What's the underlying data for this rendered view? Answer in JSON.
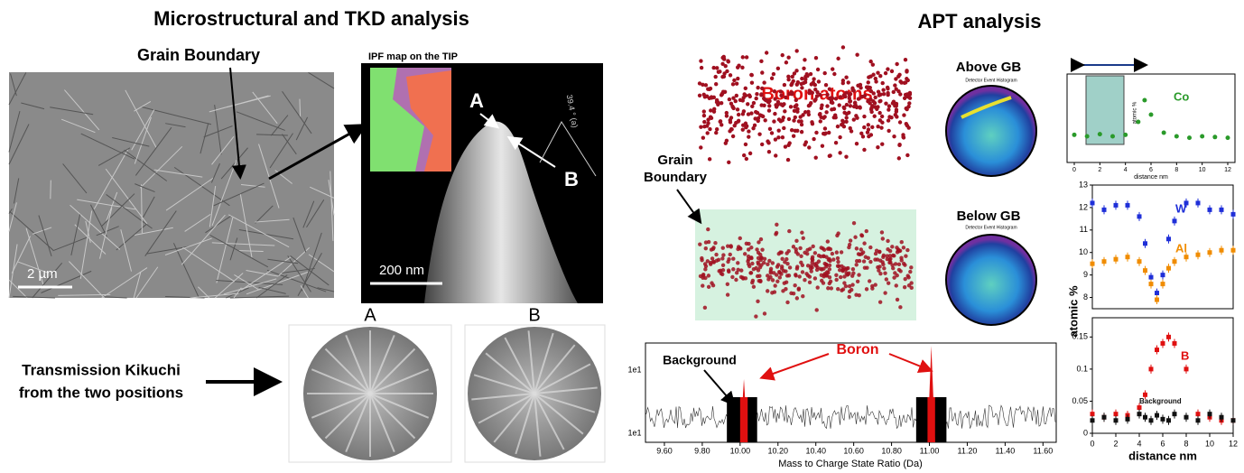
{
  "left": {
    "title": "Microstructural and TKD analysis",
    "grain_boundary_label": "Grain Boundary",
    "sem_scale": "2 µm",
    "ipf_label": "IPF map on the TIP",
    "tip_point_a": "A",
    "tip_point_b": "B",
    "tip_angle": "39.4 ° (a)",
    "tip_scale": "200 nm",
    "kikuchi_label_a": "A",
    "kikuchi_label_b": "B",
    "kikuchi_caption": [
      "Transmission Kikuchi",
      "from the two positions"
    ]
  },
  "right": {
    "title": "APT analysis",
    "boron_atoms": "Boron atoms",
    "grain_boundary_label": [
      "Grain",
      "Boundary"
    ],
    "above_gb": "Above GB",
    "below_gb": "Below GB",
    "histogram_title": "Detector Event Histogram",
    "spectrum": {
      "background_label": "Background",
      "boron_label": "Boron",
      "ylabels": [
        "1e1",
        "1e1"
      ],
      "xlabel": "Mass to Charge State Ratio (Da)",
      "xlim": [
        9.5,
        11.67
      ],
      "xticks": [
        {
          "value": 9.6,
          "label": "9.60"
        },
        {
          "value": 9.8,
          "label": "9.80"
        },
        {
          "value": 10.0,
          "label": "10.00"
        },
        {
          "value": 10.2,
          "label": "10.20"
        },
        {
          "value": 10.4,
          "label": "10.40"
        },
        {
          "value": 10.6,
          "label": "10.60"
        },
        {
          "value": 10.8,
          "label": "10.80"
        },
        {
          "value": 11.0,
          "label": "11.00"
        },
        {
          "value": 11.2,
          "label": "11.20"
        },
        {
          "value": 11.4,
          "label": "11.40"
        },
        {
          "value": 11.6,
          "label": "11.60"
        }
      ]
    },
    "co_chart": {
      "series_label": "Co",
      "ylabel": "atomic %",
      "xlabel": "distance nm",
      "xlim": [
        0,
        12
      ],
      "xticks": [
        0,
        2,
        4,
        6,
        8,
        10,
        12
      ],
      "ylim": [
        7.5,
        8.6
      ],
      "x": [
        0,
        1,
        2,
        3,
        4,
        5,
        5.5,
        6,
        7,
        8,
        9,
        10,
        11,
        12
      ],
      "values": [
        7.82,
        7.8,
        7.83,
        7.8,
        7.82,
        8.0,
        8.3,
        8.1,
        7.85,
        7.8,
        7.78,
        7.8,
        7.79,
        7.78
      ]
    },
    "profile_chart": {
      "ylabel": "atomic %",
      "xlabel": "distance nm",
      "xlim": [
        0,
        12
      ],
      "xticks": [
        0,
        2,
        4,
        6,
        8,
        10,
        12
      ],
      "upper_ylim": [
        7.5,
        13
      ],
      "upper_yticks": [
        8,
        9,
        10,
        11,
        12,
        13
      ],
      "lower_ylim": [
        0,
        0.18
      ],
      "lower_yticks": [
        0.0,
        0.05,
        0.1,
        0.15
      ],
      "x": [
        0,
        1,
        2,
        3,
        4,
        4.5,
        5,
        5.5,
        6,
        6.5,
        7,
        8,
        9,
        10,
        11,
        12
      ],
      "series": [
        {
          "name": "W",
          "color": "#1f2fd8",
          "panel": "upper",
          "values": [
            12.2,
            11.9,
            12.1,
            12.1,
            11.6,
            10.4,
            8.9,
            8.2,
            9.0,
            10.6,
            11.4,
            12.2,
            12.2,
            11.9,
            11.9,
            11.7
          ]
        },
        {
          "name": "Al",
          "color": "#f08c00",
          "panel": "upper",
          "values": [
            9.5,
            9.6,
            9.7,
            9.8,
            9.6,
            9.2,
            8.6,
            7.9,
            8.6,
            9.3,
            9.6,
            9.8,
            9.9,
            10.0,
            10.1,
            10.1
          ]
        },
        {
          "name": "B",
          "color": "#e01010",
          "panel": "lower",
          "values": [
            0.03,
            0.025,
            0.03,
            0.028,
            0.04,
            0.06,
            0.1,
            0.13,
            0.14,
            0.15,
            0.14,
            0.1,
            0.03,
            0.025,
            0.02,
            0.02
          ]
        },
        {
          "name": "Background",
          "color": "#111111",
          "panel": "lower",
          "values": [
            0.02,
            0.025,
            0.02,
            0.022,
            0.03,
            0.025,
            0.02,
            0.028,
            0.022,
            0.02,
            0.03,
            0.025,
            0.02,
            0.03,
            0.025,
            0.02
          ]
        }
      ]
    }
  }
}
